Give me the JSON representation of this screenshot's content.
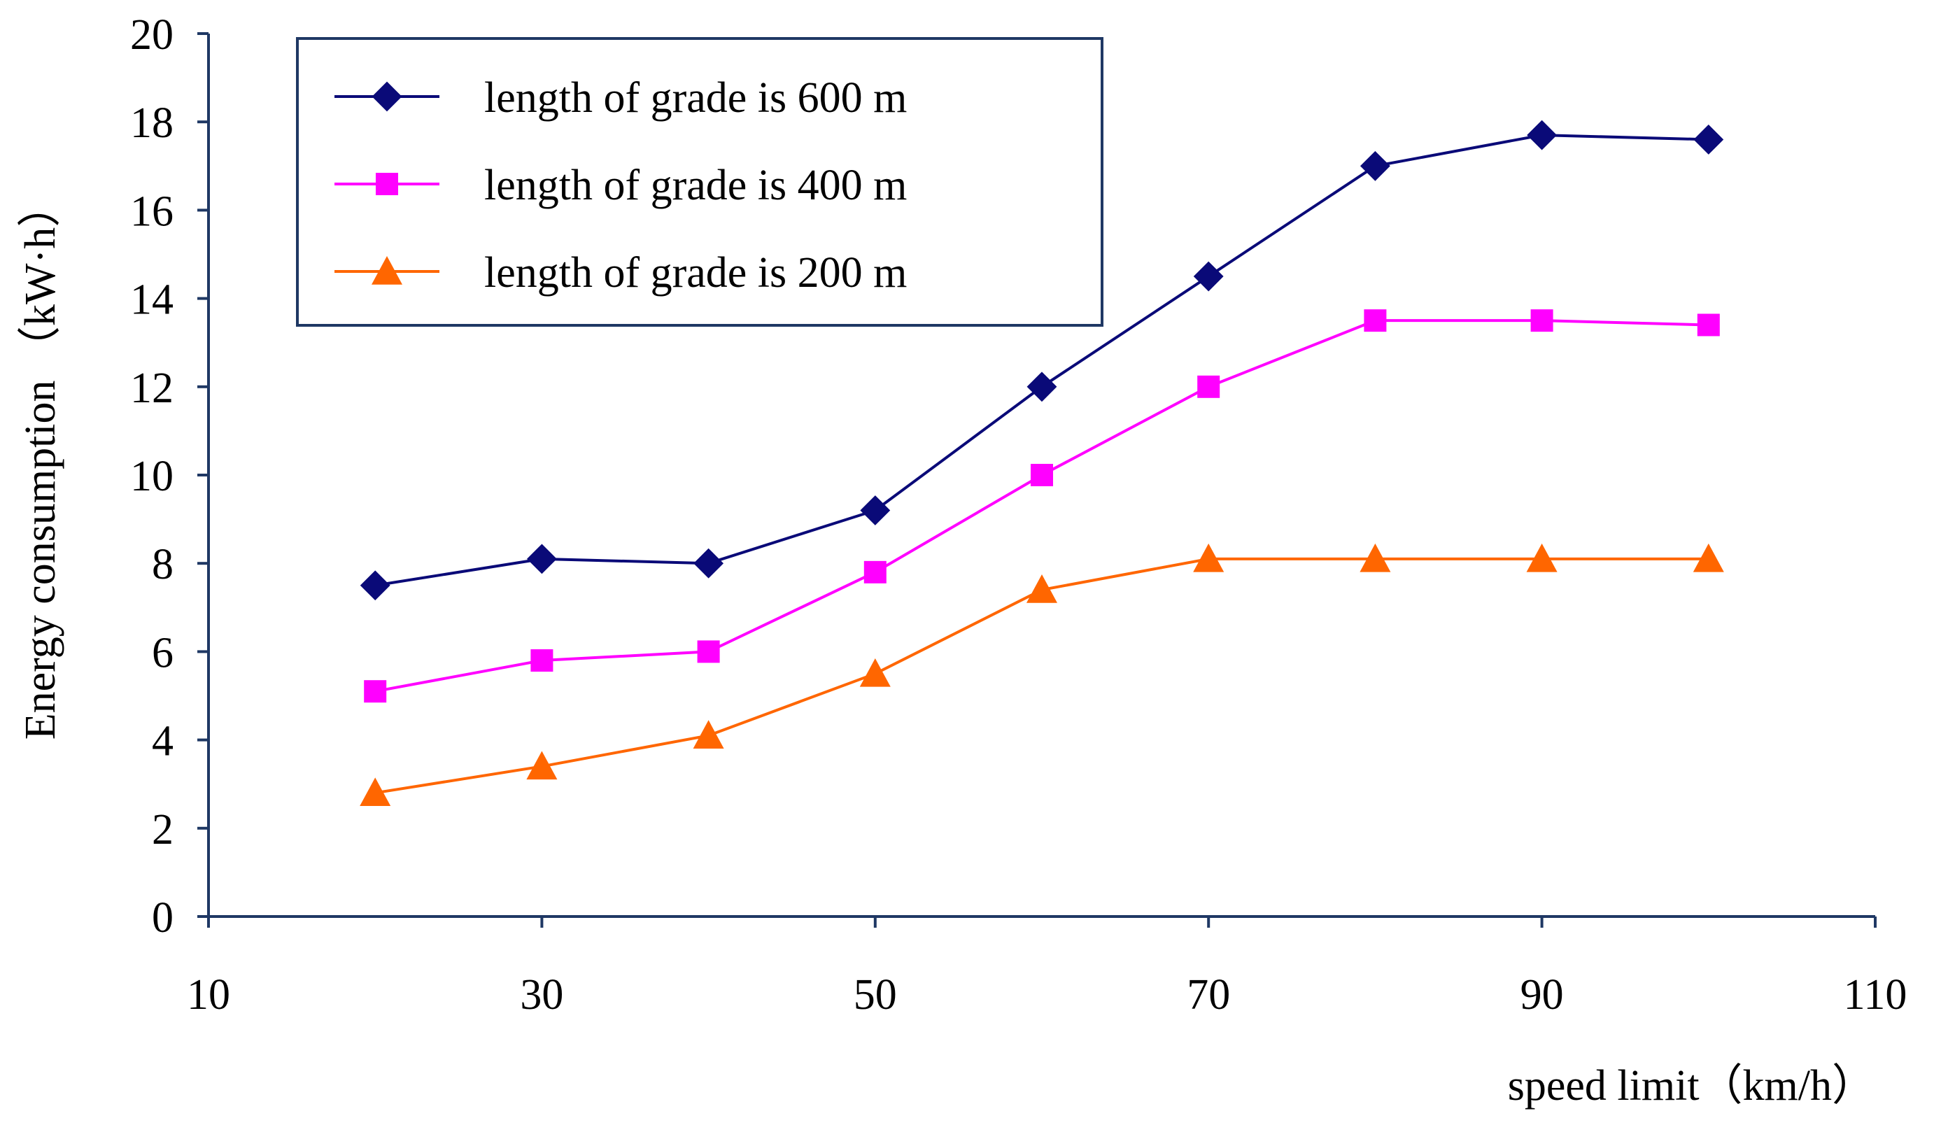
{
  "chart_data": {
    "type": "line",
    "title": "",
    "xlabel": "speed limit（km/h）",
    "ylabel": "Energy consumption （kW·h）",
    "xlim": [
      10,
      110
    ],
    "ylim": [
      0,
      20
    ],
    "x_ticks": [
      "10",
      "30",
      "50",
      "70",
      "90",
      "110"
    ],
    "y_ticks": [
      "0",
      "2",
      "4",
      "6",
      "8",
      "10",
      "12",
      "14",
      "16",
      "18",
      "20"
    ],
    "x": [
      20,
      30,
      40,
      50,
      60,
      70,
      80,
      90,
      100
    ],
    "grid": false,
    "legend_position": "top-left",
    "series": [
      {
        "name": "length of grade is 600 m",
        "marker": "diamond",
        "color": "#0a0a78",
        "values": [
          7.5,
          8.1,
          8.0,
          9.2,
          12.0,
          14.5,
          17.0,
          17.7,
          17.6
        ]
      },
      {
        "name": "length of grade is 400 m",
        "marker": "square",
        "color": "#ff00ff",
        "values": [
          5.1,
          5.8,
          6.0,
          7.8,
          10.0,
          12.0,
          13.5,
          13.5,
          13.4
        ]
      },
      {
        "name": "length of grade is 200 m",
        "marker": "triangle",
        "color": "#ff6600",
        "values": [
          2.8,
          3.4,
          4.1,
          5.5,
          7.4,
          8.1,
          8.1,
          8.1,
          8.1
        ]
      }
    ]
  }
}
